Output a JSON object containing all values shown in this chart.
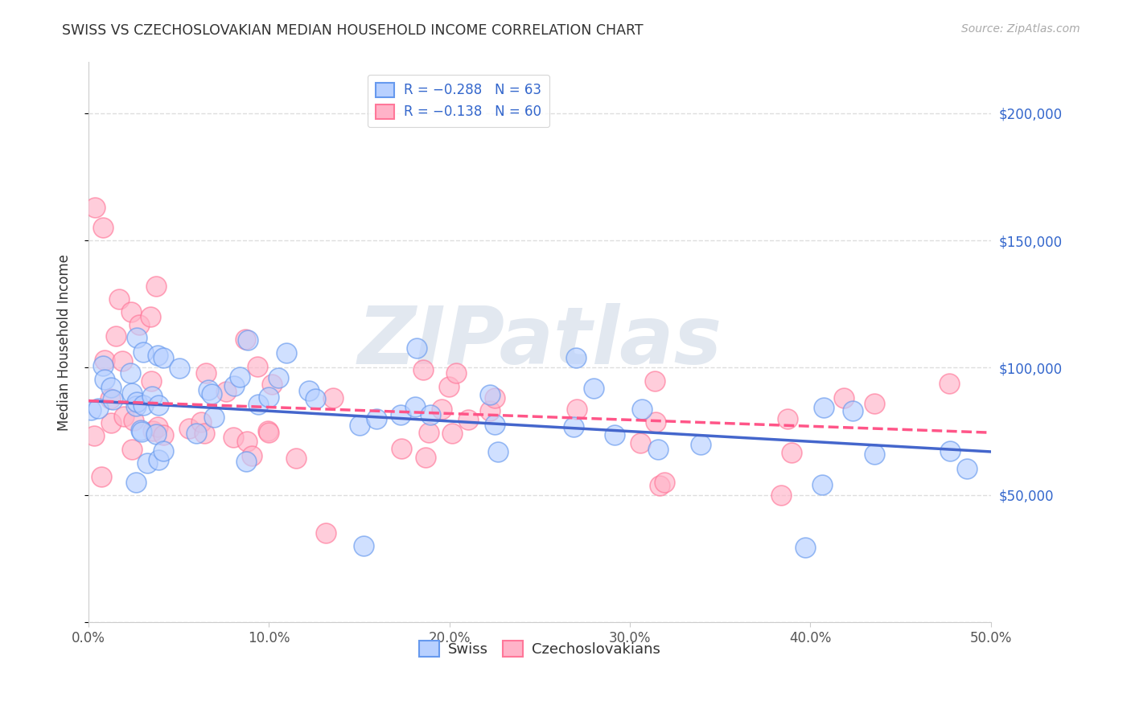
{
  "title": "SWISS VS CZECHOSLOVAKIAN MEDIAN HOUSEHOLD INCOME CORRELATION CHART",
  "source": "Source: ZipAtlas.com",
  "ylabel": "Median Household Income",
  "xlim": [
    0.0,
    0.5
  ],
  "ylim": [
    0,
    220000
  ],
  "xtick_labels": [
    "0.0%",
    "10.0%",
    "20.0%",
    "30.0%",
    "40.0%",
    "50.0%"
  ],
  "xtick_values": [
    0.0,
    0.1,
    0.2,
    0.3,
    0.4,
    0.5
  ],
  "ytick_values": [
    0,
    50000,
    100000,
    150000,
    200000
  ],
  "ytick_labels": [
    "",
    "$50,000",
    "$100,000",
    "$150,000",
    "$200,000"
  ],
  "watermark": "ZIPatlas",
  "legend_r_swiss": "R = −0.288",
  "legend_n_swiss": "N = 63",
  "legend_r_czech": "R = −0.138",
  "legend_n_czech": "N = 60",
  "swiss_face_color": "#b8d0ff",
  "swiss_edge_color": "#6699ee",
  "czech_face_color": "#ffb3c8",
  "czech_edge_color": "#ff7799",
  "trendline_swiss_color": "#4466cc",
  "trendline_czech_color": "#ff5588",
  "background_color": "#ffffff",
  "grid_color": "#dddddd",
  "label_swiss": "Swiss",
  "label_czech": "Czechoslovakians",
  "swiss_intercept": 87000,
  "swiss_slope": -40000,
  "czech_intercept": 87000,
  "czech_slope": -25000,
  "n_swiss": 63,
  "n_czech": 60
}
